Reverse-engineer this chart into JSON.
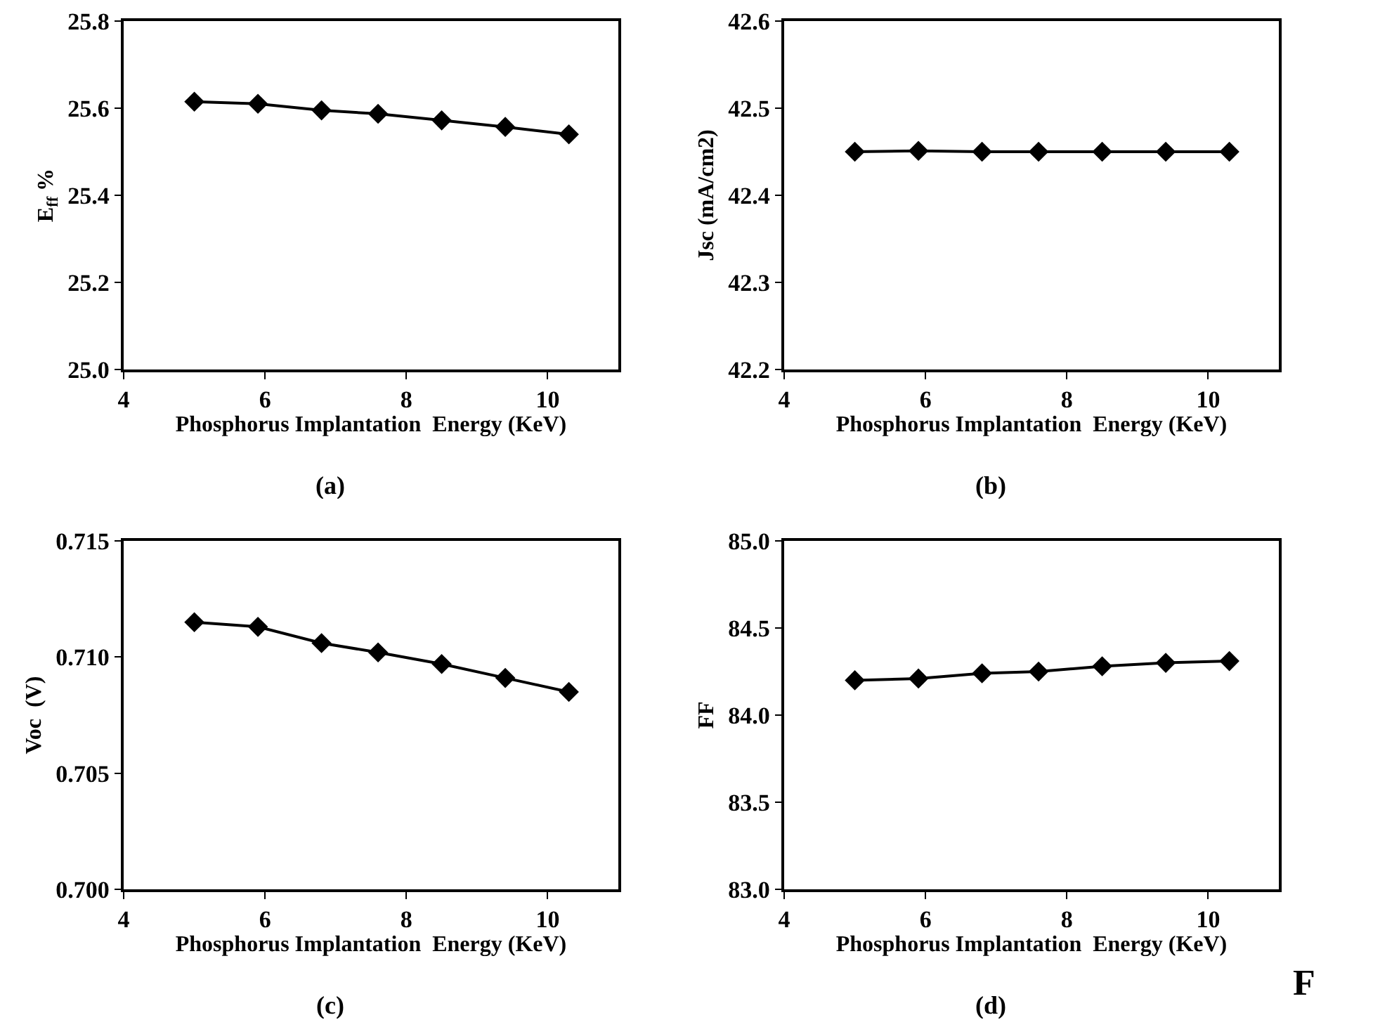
{
  "chart_data": [
    {
      "type": "line",
      "title": "(a)",
      "xlabel": "Phosphorus Implantation  Energy (KeV)",
      "ylabel": "E$_{ff}$ %",
      "x": [
        5,
        5.9,
        6.8,
        7.6,
        8.5,
        9.4,
        10.3
      ],
      "series": [
        {
          "color": "#000000",
          "values": [
            25.615,
            25.61,
            25.595,
            25.587,
            25.572,
            25.557,
            25.54
          ]
        }
      ],
      "xlim": [
        4,
        11
      ],
      "xticks": [
        4,
        6,
        8,
        10
      ],
      "ylim": [
        25.0,
        25.8
      ],
      "yticks": [
        {
          "value": 25.0,
          "label": "25.0"
        },
        25.2,
        25.4,
        25.6,
        25.8
      ],
      "grid": false,
      "marker": "diamond",
      "line_style": "solid"
    },
    {
      "type": "line",
      "title": "(b)",
      "xlabel": "Phosphorus Implantation  Energy (KeV)",
      "ylabel": "Jsc (mA/cm2)",
      "x": [
        5,
        5.9,
        6.8,
        7.6,
        8.5,
        9.4,
        10.3
      ],
      "series": [
        {
          "color": "#000000",
          "values": [
            42.45,
            42.451,
            42.45,
            42.45,
            42.45,
            42.45,
            42.45
          ]
        }
      ],
      "xlim": [
        4,
        11
      ],
      "xticks": [
        4,
        6,
        8,
        10
      ],
      "ylim": [
        42.2,
        42.6
      ],
      "yticks": [
        42.2,
        42.3,
        42.4,
        42.5,
        42.6
      ],
      "grid": false,
      "marker": "diamond",
      "line_style": "solid"
    },
    {
      "type": "line",
      "title": "(c)",
      "xlabel": "Phosphorus Implantation  Energy (KeV)",
      "ylabel": "Voc  (V)",
      "x": [
        5,
        5.9,
        6.8,
        7.6,
        8.5,
        9.4,
        10.3
      ],
      "series": [
        {
          "color": "#000000",
          "values": [
            0.7115,
            0.7113,
            0.7106,
            0.7102,
            0.7097,
            0.7091,
            0.7085
          ]
        }
      ],
      "xlim": [
        4,
        11
      ],
      "xticks": [
        4,
        6,
        8,
        10
      ],
      "ylim": [
        0.7,
        0.715
      ],
      "yticks": [
        {
          "value": 0.7,
          "label": "0.700"
        },
        0.705,
        {
          "value": 0.71,
          "label": "0.710"
        },
        0.715
      ],
      "grid": false,
      "marker": "diamond",
      "line_style": "solid"
    },
    {
      "type": "line",
      "title": "(d)",
      "xlabel": "Phosphorus Implantation  Energy (KeV)",
      "ylabel": "FF",
      "x": [
        5,
        5.9,
        6.8,
        7.6,
        8.5,
        9.4,
        10.3
      ],
      "series": [
        {
          "color": "#000000",
          "values": [
            84.2,
            84.21,
            84.24,
            84.25,
            84.28,
            84.3,
            84.31
          ]
        }
      ],
      "xlim": [
        4,
        11
      ],
      "xticks": [
        4,
        6,
        8,
        10
      ],
      "ylim": [
        83.0,
        85.0
      ],
      "yticks": [
        {
          "value": 83.0,
          "label": "83.0"
        },
        83.5,
        {
          "value": 84.0,
          "label": "84.0"
        },
        84.5,
        {
          "value": 85.0,
          "label": "85.0"
        }
      ],
      "grid": false,
      "marker": "diamond",
      "line_style": "solid",
      "annotations": [
        "F"
      ]
    }
  ]
}
